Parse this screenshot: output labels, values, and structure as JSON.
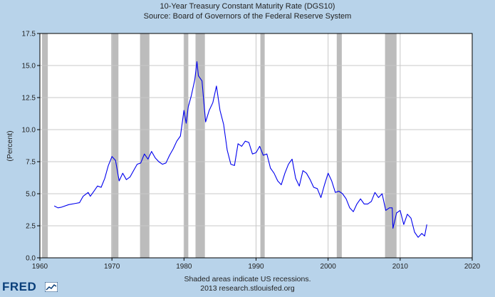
{
  "chart_data": {
    "type": "line",
    "title": "10-Year Treasury Constant Maturity Rate (DGS10)",
    "subtitle": "Source: Board of Governors of the Federal Reserve System",
    "xlabel": "",
    "ylabel": "(Percent)",
    "xlim": [
      1960,
      2020
    ],
    "ylim": [
      0,
      17.5
    ],
    "x_ticks": [
      "1960",
      "1970",
      "1980",
      "1990",
      "2000",
      "2010",
      "2020"
    ],
    "y_ticks": [
      "0.0",
      "2.5",
      "5.0",
      "7.5",
      "10.0",
      "12.5",
      "15.0",
      "17.5"
    ],
    "grid": true,
    "series": [
      {
        "color": "#0000ee",
        "x": [
          1962.0,
          1962.5,
          1963.0,
          1964.0,
          1965.0,
          1965.5,
          1966.0,
          1966.7,
          1967.0,
          1967.5,
          1968.0,
          1968.5,
          1969.0,
          1969.5,
          1970.0,
          1970.5,
          1971.0,
          1971.5,
          1972.0,
          1972.5,
          1973.0,
          1973.5,
          1974.0,
          1974.5,
          1975.0,
          1975.5,
          1976.0,
          1976.5,
          1977.0,
          1977.5,
          1978.0,
          1978.5,
          1979.0,
          1979.5,
          1980.0,
          1980.3,
          1980.6,
          1981.0,
          1981.5,
          1981.8,
          1982.0,
          1982.5,
          1983.0,
          1983.5,
          1984.0,
          1984.5,
          1985.0,
          1985.5,
          1986.0,
          1986.5,
          1987.0,
          1987.5,
          1988.0,
          1988.5,
          1989.0,
          1989.5,
          1990.0,
          1990.5,
          1991.0,
          1991.5,
          1992.0,
          1992.5,
          1993.0,
          1993.5,
          1994.0,
          1994.5,
          1995.0,
          1995.5,
          1996.0,
          1996.5,
          1997.0,
          1997.5,
          1998.0,
          1998.5,
          1999.0,
          1999.5,
          2000.0,
          2000.5,
          2001.0,
          2001.5,
          2002.0,
          2002.5,
          2003.0,
          2003.5,
          2004.0,
          2004.5,
          2005.0,
          2005.5,
          2006.0,
          2006.5,
          2007.0,
          2007.5,
          2008.0,
          2008.5,
          2008.9,
          2009.0,
          2009.5,
          2010.0,
          2010.5,
          2011.0,
          2011.5,
          2012.0,
          2012.5,
          2013.0,
          2013.4,
          2013.7
        ],
        "values": [
          4.05,
          3.9,
          3.95,
          4.15,
          4.25,
          4.3,
          4.8,
          5.1,
          4.8,
          5.2,
          5.6,
          5.5,
          6.2,
          7.2,
          7.9,
          7.6,
          6.0,
          6.6,
          6.1,
          6.3,
          6.8,
          7.3,
          7.4,
          8.1,
          7.7,
          8.3,
          7.8,
          7.5,
          7.3,
          7.4,
          8.0,
          8.5,
          9.1,
          9.5,
          11.5,
          10.5,
          11.8,
          12.6,
          13.9,
          15.3,
          14.2,
          13.8,
          10.6,
          11.5,
          12.1,
          13.4,
          11.5,
          10.4,
          8.4,
          7.3,
          7.2,
          8.9,
          8.7,
          9.1,
          9.0,
          8.1,
          8.2,
          8.7,
          8.0,
          8.1,
          7.0,
          6.6,
          6.0,
          5.7,
          6.6,
          7.3,
          7.7,
          6.2,
          5.6,
          6.8,
          6.6,
          6.1,
          5.5,
          5.4,
          4.7,
          5.7,
          6.6,
          6.0,
          5.1,
          5.2,
          5.0,
          4.6,
          3.9,
          3.6,
          4.2,
          4.6,
          4.2,
          4.2,
          4.4,
          5.1,
          4.7,
          5.0,
          3.7,
          3.9,
          3.9,
          2.3,
          3.5,
          3.7,
          2.6,
          3.4,
          3.1,
          2.0,
          1.6,
          1.9,
          1.7,
          2.6
        ]
      }
    ],
    "recessions": [
      [
        1960.3,
        1961.1
      ],
      [
        1969.9,
        1970.9
      ],
      [
        1973.9,
        1975.2
      ],
      [
        1980.0,
        1980.6
      ],
      [
        1981.6,
        1982.9
      ],
      [
        1990.6,
        1991.2
      ],
      [
        2001.2,
        2001.9
      ],
      [
        2007.9,
        2009.5
      ]
    ],
    "notes": [
      "Shaded areas indicate US recessions.",
      "2013 research.stlouisfed.org"
    ]
  },
  "branding": {
    "logo_text": "FRED"
  },
  "colors": {
    "background": "#b8d3ea",
    "plot_bg": "#ffffff",
    "grid": "#c8c8c8",
    "recession": "#bcbcbc",
    "line": "#0000ee"
  }
}
